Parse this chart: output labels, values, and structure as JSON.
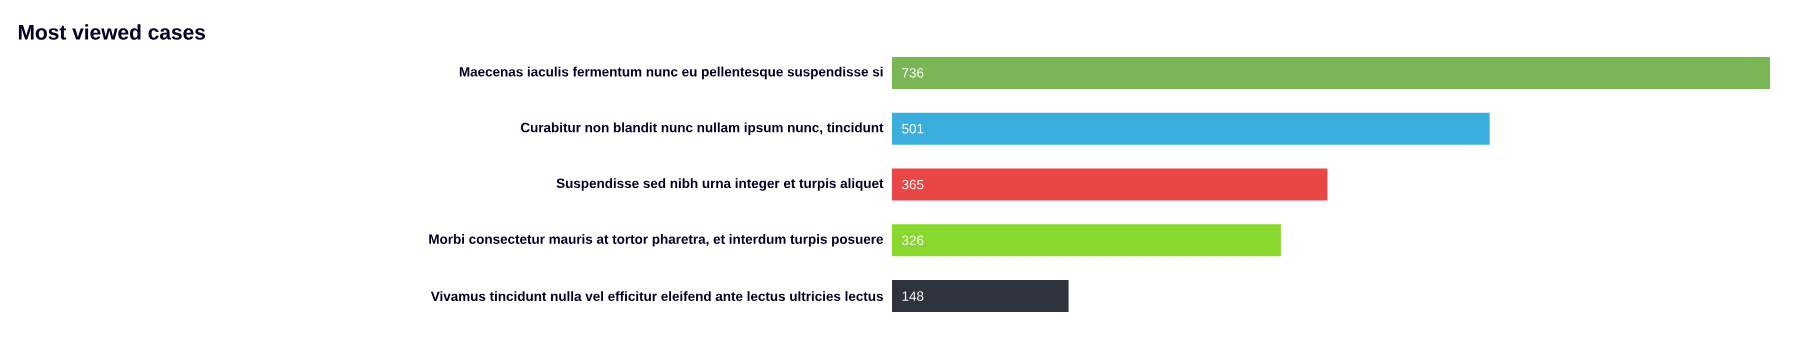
{
  "chart_data": {
    "type": "bar",
    "orientation": "horizontal",
    "title": "Most viewed cases",
    "categories": [
      "Maecenas iaculis fermentum nunc eu pellentesque suspendisse si",
      "Curabitur non blandit nunc nullam ipsum nunc, tincidunt",
      "Suspendisse sed nibh urna integer et turpis aliquet",
      "Morbi consectetur mauris at tortor pharetra, et interdum turpis posuere",
      "Vivamus tincidunt nulla vel efficitur eleifend ante lectus ultricies lectus"
    ],
    "values": [
      736,
      501,
      365,
      326,
      148
    ],
    "colors": [
      "#7ab656",
      "#3aaedc",
      "#e94646",
      "#88d82e",
      "#2e333d"
    ],
    "data_labels": true
  }
}
